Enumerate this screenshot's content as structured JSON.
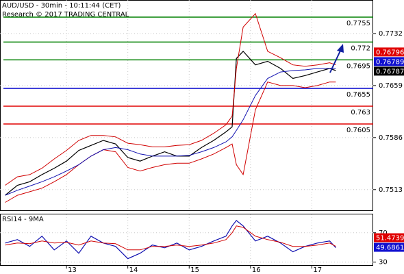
{
  "chart_data": [
    {
      "type": "line",
      "title": "AUD/USD - 30min - 10:11:44 (CET)",
      "subtitle": "Research © 2017 TRADING CENTRAL",
      "x": [
        12.0,
        12.2,
        12.4,
        12.6,
        12.8,
        13.0,
        13.2,
        13.4,
        13.6,
        13.8,
        14.0,
        14.2,
        14.4,
        14.6,
        14.8,
        15.0,
        15.2,
        15.4,
        15.6,
        15.7,
        15.77,
        15.88,
        16.08,
        16.28,
        16.49,
        16.69,
        16.89,
        17.09,
        17.29,
        17.39
      ],
      "xlim": [
        11.916,
        18.0
      ],
      "ylim": [
        0.7483,
        0.7779
      ],
      "yticks": [
        0.7513,
        0.7586,
        0.7659,
        0.7732
      ],
      "grid": true,
      "series": [
        {
          "color": "#000000",
          "values": [
            0.7505,
            0.7519,
            0.7524,
            0.7534,
            0.7543,
            0.7553,
            0.7568,
            0.7575,
            0.7582,
            0.7577,
            0.7558,
            0.7553,
            0.756,
            0.7566,
            0.756,
            0.756,
            0.7572,
            0.7582,
            0.7594,
            0.7601,
            0.7697,
            0.7707,
            0.7688,
            0.7693,
            0.7683,
            0.7669,
            0.7673,
            0.7678,
            0.7683,
            0.768
          ]
        },
        {
          "color": "#d00000",
          "values": [
            0.7519,
            0.7531,
            0.7534,
            0.7543,
            0.7556,
            0.7568,
            0.7582,
            0.7589,
            0.7589,
            0.7587,
            0.7578,
            0.7576,
            0.7573,
            0.7573,
            0.7575,
            0.7576,
            0.7582,
            0.7592,
            0.7604,
            0.7616,
            0.7683,
            0.7741,
            0.776,
            0.7707,
            0.7698,
            0.7688,
            0.7686,
            0.7688,
            0.7691,
            0.7688
          ]
        },
        {
          "color": "#d00000",
          "values": [
            0.7495,
            0.7505,
            0.751,
            0.7515,
            0.7524,
            0.7534,
            0.7548,
            0.756,
            0.7569,
            0.7566,
            0.7544,
            0.7539,
            0.7544,
            0.7548,
            0.755,
            0.755,
            0.7556,
            0.7563,
            0.7572,
            0.7577,
            0.7548,
            0.7534,
            0.7625,
            0.7664,
            0.7659,
            0.7659,
            0.7656,
            0.7659,
            0.7664,
            0.7664
          ]
        },
        {
          "color": "#1010b0",
          "values": [
            0.7505,
            0.7512,
            0.7518,
            0.7524,
            0.7531,
            0.7539,
            0.7548,
            0.756,
            0.7569,
            0.7572,
            0.7569,
            0.7563,
            0.756,
            0.756,
            0.756,
            0.7561,
            0.7566,
            0.7572,
            0.758,
            0.7587,
            0.7596,
            0.7611,
            0.7645,
            0.7669,
            0.7678,
            0.768,
            0.7681,
            0.7683,
            0.7683,
            0.7683
          ]
        }
      ],
      "levels": [
        {
          "value": 0.7755,
          "color": "#008000"
        },
        {
          "value": 0.772,
          "color": "#008000"
        },
        {
          "value": 0.7695,
          "color": "#008000"
        },
        {
          "value": 0.7655,
          "color": "#0000cc"
        },
        {
          "value": 0.763,
          "color": "#e00000"
        },
        {
          "value": 0.7605,
          "color": "#e00000"
        }
      ],
      "price_tags": [
        {
          "value": 0.76796,
          "color": "#e00000"
        },
        {
          "value": 0.76789,
          "color": "#1010d0"
        },
        {
          "value": 0.76787,
          "color": "#000000"
        }
      ]
    },
    {
      "type": "line",
      "title": "RSI14 - 9MA",
      "x": [
        12.0,
        12.2,
        12.4,
        12.6,
        12.8,
        13.0,
        13.2,
        13.4,
        13.6,
        13.8,
        14.0,
        14.2,
        14.4,
        14.6,
        14.8,
        15.0,
        15.2,
        15.4,
        15.6,
        15.7,
        15.77,
        15.88,
        16.08,
        16.28,
        16.49,
        16.69,
        16.89,
        17.09,
        17.29,
        17.39
      ],
      "xlim": [
        11.916,
        18.0
      ],
      "xticks": [
        13,
        14,
        15,
        16,
        17
      ],
      "ylim": [
        25,
        95
      ],
      "yticks": [
        30,
        70
      ],
      "grid": true,
      "series": [
        {
          "color": "#1010b0",
          "values": [
            56.0,
            60.7,
            51.4,
            65.3,
            46.7,
            58.8,
            42.1,
            65.3,
            56.0,
            51.4,
            34.7,
            42.1,
            53.3,
            49.5,
            56.0,
            46.7,
            51.4,
            58.8,
            65.3,
            79.3,
            86.7,
            79.3,
            58.8,
            65.3,
            56.0,
            44.0,
            51.4,
            56.0,
            58.8,
            49.6861
          ]
        },
        {
          "color": "#d00000",
          "values": [
            53.3,
            56.0,
            55.1,
            58.8,
            56.0,
            57.0,
            53.3,
            58.8,
            56.0,
            55.1,
            46.7,
            46.7,
            51.4,
            51.4,
            53.3,
            51.4,
            53.3,
            56.0,
            60.7,
            70.0,
            79.3,
            77.4,
            65.3,
            60.7,
            57.0,
            51.4,
            51.4,
            53.3,
            56.0,
            51.4739
          ]
        }
      ],
      "price_tags": [
        {
          "value": 51.4739,
          "color": "#e00000"
        },
        {
          "value": 49.6861,
          "color": "#1010d0"
        }
      ]
    }
  ]
}
